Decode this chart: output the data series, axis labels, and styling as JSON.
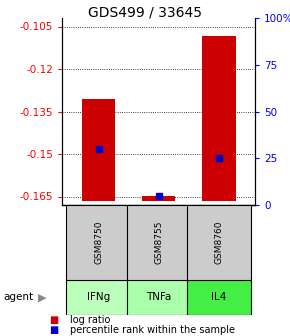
{
  "title": "GDS499 / 33645",
  "samples": [
    "GSM8750",
    "GSM8755",
    "GSM8760"
  ],
  "agents": [
    "IFNg",
    "TNFa",
    "IL4"
  ],
  "log_ratios": [
    -0.1305,
    -0.1648,
    -0.1085
  ],
  "percentile_ranks": [
    30.0,
    5.0,
    25.0
  ],
  "y_min": -0.168,
  "y_max": -0.102,
  "y_ticks_left": [
    -0.105,
    -0.12,
    -0.135,
    -0.15,
    -0.165
  ],
  "y_ticks_right": [
    0,
    25,
    50,
    75,
    100
  ],
  "bar_bottom": -0.1665,
  "bar_color": "#cc0000",
  "dot_color": "#0000cc",
  "agent_colors": [
    "#bbffbb",
    "#aaffaa",
    "#44ee44"
  ],
  "sample_bg_color": "#cccccc",
  "title_fontsize": 10,
  "axis_fontsize": 7.5,
  "legend_fontsize": 7
}
